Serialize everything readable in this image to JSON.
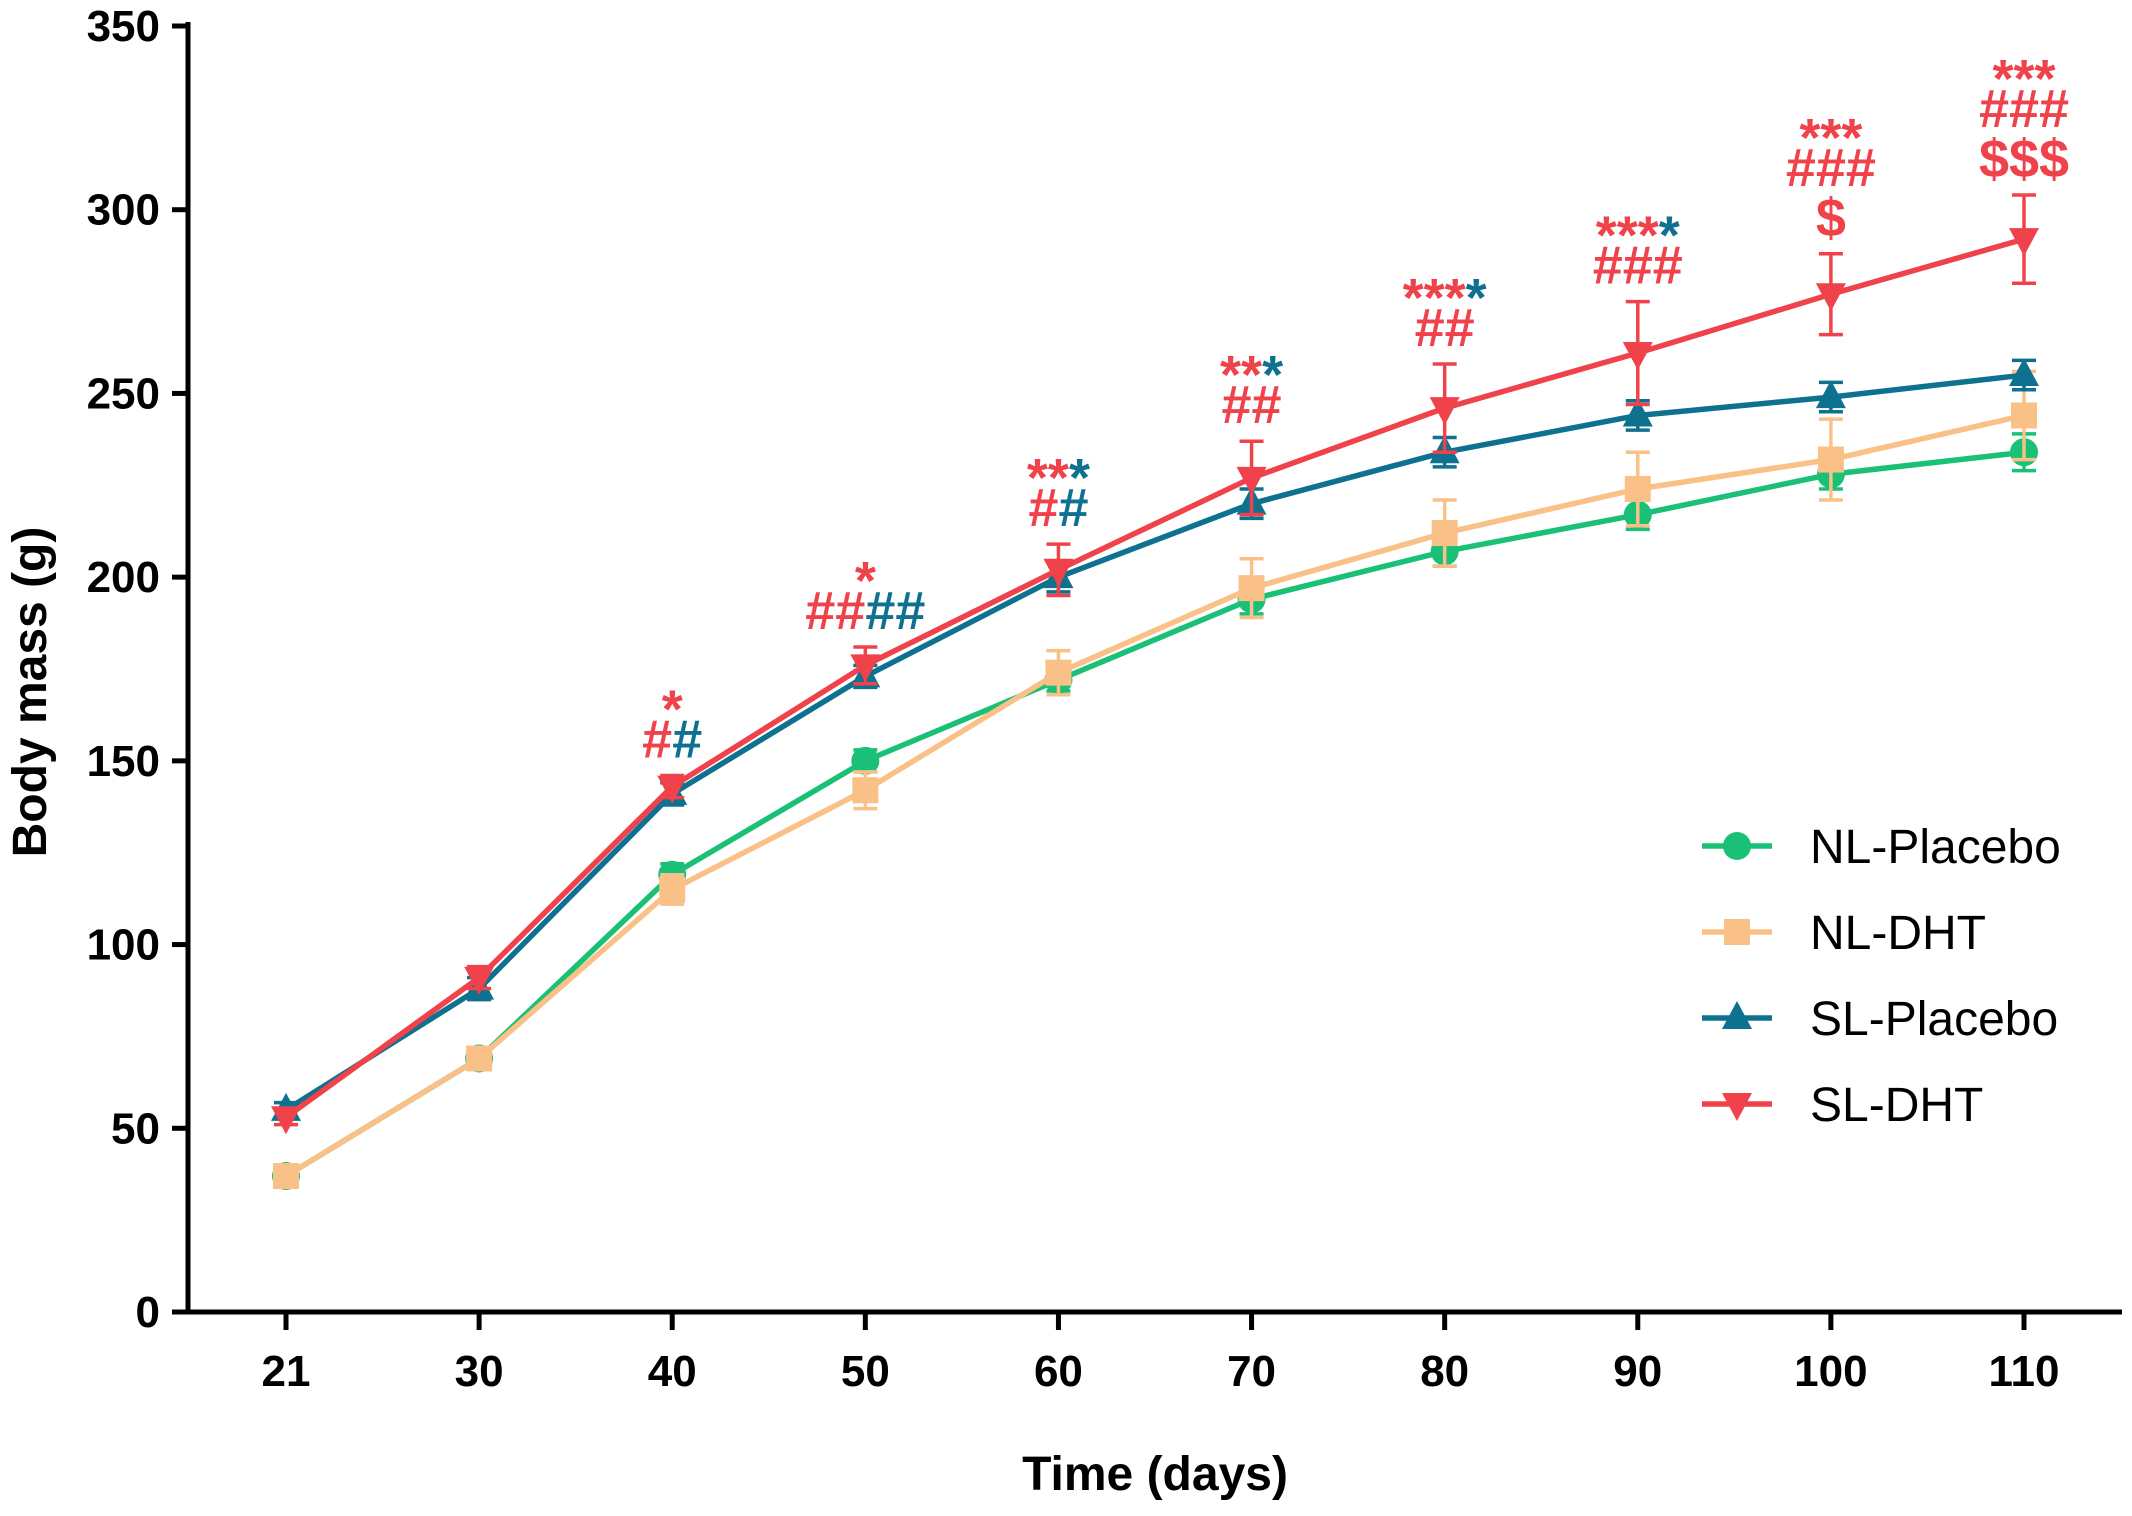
{
  "chart_data": {
    "type": "line",
    "title": "",
    "xlabel": "Time (days)",
    "ylabel": "Body mass (g)",
    "x": [
      21,
      30,
      40,
      50,
      60,
      70,
      80,
      90,
      100,
      110
    ],
    "x_tick_labels": [
      "21",
      "30",
      "40",
      "50",
      "60",
      "70",
      "80",
      "90",
      "100",
      "110"
    ],
    "ylim": [
      0,
      350
    ],
    "y_ticks": [
      0,
      50,
      100,
      150,
      200,
      250,
      300,
      350
    ],
    "y_tick_labels": [
      "0",
      "50",
      "100",
      "150",
      "200",
      "250",
      "300",
      "350"
    ],
    "legend_position": "right",
    "series": [
      {
        "name": "NL-Placebo",
        "color": "#19c075",
        "marker": "circle",
        "values": [
          37,
          69,
          119,
          150,
          172,
          194,
          207,
          217,
          228,
          234
        ],
        "errors": [
          2,
          2,
          3,
          3,
          3,
          4,
          4,
          4,
          4,
          5
        ]
      },
      {
        "name": "NL-DHT",
        "color": "#f9c187",
        "marker": "square",
        "values": [
          37,
          69,
          115,
          142,
          174,
          197,
          212,
          224,
          232,
          244
        ],
        "errors": [
          2,
          3,
          4,
          5,
          6,
          8,
          9,
          10,
          11,
          12
        ]
      },
      {
        "name": "SL-Placebo",
        "color": "#0f7190",
        "marker": "triangle-up",
        "values": [
          55,
          88,
          141,
          173,
          200,
          220,
          234,
          244,
          249,
          255
        ],
        "errors": [
          2,
          3,
          3,
          3,
          4,
          4,
          4,
          4,
          4,
          4
        ]
      },
      {
        "name": "SL-DHT",
        "color": "#f0424b",
        "marker": "triangle-down",
        "values": [
          53,
          91,
          143,
          176,
          202,
          227,
          246,
          261,
          277,
          292
        ],
        "errors": [
          2,
          3,
          3,
          5,
          7,
          10,
          12,
          14,
          11,
          12
        ]
      }
    ],
    "annotations": [
      {
        "x": 40,
        "lines": [
          [
            {
              "t": "*",
              "c": "red"
            }
          ],
          [
            {
              "t": "#",
              "c": "red"
            },
            {
              "t": "#",
              "c": "teal"
            }
          ]
        ]
      },
      {
        "x": 50,
        "lines": [
          [
            {
              "t": "*",
              "c": "red"
            }
          ],
          [
            {
              "t": "##",
              "c": "red"
            },
            {
              "t": "##",
              "c": "teal"
            }
          ]
        ]
      },
      {
        "x": 60,
        "lines": [
          [
            {
              "t": "**",
              "c": "red"
            },
            {
              "t": "*",
              "c": "teal"
            }
          ],
          [
            {
              "t": "#",
              "c": "red"
            },
            {
              "t": "#",
              "c": "teal"
            }
          ]
        ]
      },
      {
        "x": 70,
        "lines": [
          [
            {
              "t": "**",
              "c": "red"
            },
            {
              "t": "*",
              "c": "teal"
            }
          ],
          [
            {
              "t": "##",
              "c": "red"
            }
          ]
        ]
      },
      {
        "x": 80,
        "lines": [
          [
            {
              "t": "***",
              "c": "red"
            },
            {
              "t": "*",
              "c": "teal"
            }
          ],
          [
            {
              "t": "##",
              "c": "red"
            }
          ]
        ]
      },
      {
        "x": 90,
        "lines": [
          [
            {
              "t": "***",
              "c": "red"
            },
            {
              "t": "*",
              "c": "teal"
            }
          ],
          [
            {
              "t": "###",
              "c": "red"
            }
          ]
        ]
      },
      {
        "x": 100,
        "lines": [
          [
            {
              "t": "***",
              "c": "red"
            }
          ],
          [
            {
              "t": "###",
              "c": "red"
            }
          ],
          [
            {
              "t": "$",
              "c": "red"
            }
          ]
        ]
      },
      {
        "x": 110,
        "lines": [
          [
            {
              "t": "***",
              "c": "red"
            }
          ],
          [
            {
              "t": "###",
              "c": "red"
            }
          ],
          [
            {
              "t": "$$$",
              "c": "red"
            }
          ]
        ]
      }
    ],
    "annotation_colors": {
      "red": "#f0424b",
      "teal": "#0f7190"
    }
  }
}
